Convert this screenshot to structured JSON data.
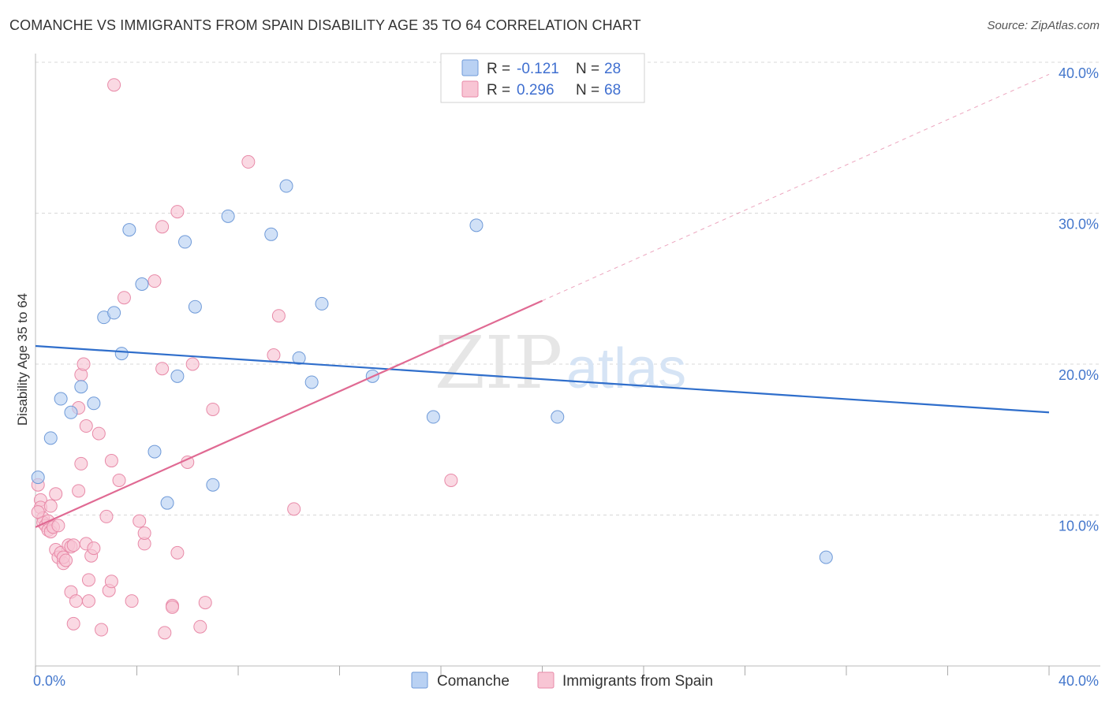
{
  "title": "COMANCHE VS IMMIGRANTS FROM SPAIN DISABILITY AGE 35 TO 64 CORRELATION CHART",
  "source": "Source: ZipAtlas.com",
  "watermark": {
    "zip": "ZIP",
    "atlas": "atlas"
  },
  "colors": {
    "comanche_fill": "#b9d1f3",
    "comanche_stroke": "#6f9ad8",
    "comanche_line": "#2f6ecb",
    "spain_fill": "#f8c5d4",
    "spain_stroke": "#e88aa8",
    "spain_line": "#e06a93",
    "grid": "#d8d8d8",
    "tick_text": "#4477cc"
  },
  "chart_data": {
    "type": "scatter",
    "xlabel": "",
    "ylabel": "Disability Age 35 to 64",
    "xlim": [
      0,
      40
    ],
    "ylim": [
      0,
      40
    ],
    "x_tick_labels": [
      {
        "value": 0,
        "label": "0.0%"
      },
      {
        "value": 40,
        "label": "40.0%"
      }
    ],
    "y_tick_labels": [
      {
        "value": 10,
        "label": "10.0%"
      },
      {
        "value": 20,
        "label": "20.0%"
      },
      {
        "value": 30,
        "label": "30.0%"
      },
      {
        "value": 40,
        "label": "40.0%"
      }
    ],
    "legend": {
      "placement": "top-center",
      "entries": [
        {
          "name": "Comanche",
          "r_label": "R =",
          "r": "-0.121",
          "n_label": "N =",
          "n": "28"
        },
        {
          "name": "Immigrants from Spain",
          "r_label": "R =",
          "r": "0.296",
          "n_label": "N =",
          "n": "68"
        }
      ]
    },
    "series": [
      {
        "name": "Comanche",
        "trend": {
          "x0": 0,
          "y0": 21.2,
          "x1": 40,
          "y1": 16.8
        },
        "points": [
          [
            0.1,
            12.5
          ],
          [
            0.6,
            15.1
          ],
          [
            1.0,
            17.7
          ],
          [
            1.4,
            16.8
          ],
          [
            1.8,
            18.5
          ],
          [
            2.3,
            17.4
          ],
          [
            2.7,
            23.1
          ],
          [
            3.1,
            23.4
          ],
          [
            3.4,
            20.7
          ],
          [
            3.7,
            28.9
          ],
          [
            4.2,
            25.3
          ],
          [
            4.7,
            14.2
          ],
          [
            5.2,
            10.8
          ],
          [
            5.6,
            19.2
          ],
          [
            5.9,
            28.1
          ],
          [
            6.3,
            23.8
          ],
          [
            7.0,
            12.0
          ],
          [
            7.6,
            29.8
          ],
          [
            9.3,
            28.6
          ],
          [
            9.9,
            31.8
          ],
          [
            10.4,
            20.4
          ],
          [
            10.9,
            18.8
          ],
          [
            11.3,
            24.0
          ],
          [
            13.3,
            19.2
          ],
          [
            15.7,
            16.5
          ],
          [
            17.4,
            29.2
          ],
          [
            20.6,
            16.5
          ],
          [
            31.2,
            7.2
          ]
        ]
      },
      {
        "name": "Immigrants from Spain",
        "trend": {
          "x0": 0,
          "y0": 9.2,
          "x1": 20,
          "y1": 24.2,
          "dashed_x1": 40,
          "dashed_y1": 39.2
        },
        "points": [
          [
            0.1,
            12.0
          ],
          [
            0.2,
            11.0
          ],
          [
            0.2,
            10.5
          ],
          [
            0.3,
            9.8
          ],
          [
            0.3,
            9.5
          ],
          [
            0.4,
            9.3
          ],
          [
            0.5,
            9.6
          ],
          [
            0.5,
            9.0
          ],
          [
            0.6,
            10.6
          ],
          [
            0.6,
            8.9
          ],
          [
            0.7,
            9.2
          ],
          [
            0.8,
            11.4
          ],
          [
            0.8,
            7.7
          ],
          [
            0.9,
            7.2
          ],
          [
            0.9,
            9.3
          ],
          [
            1.0,
            7.5
          ],
          [
            1.1,
            6.8
          ],
          [
            1.1,
            7.2
          ],
          [
            1.2,
            7.0
          ],
          [
            1.3,
            8.0
          ],
          [
            1.4,
            7.9
          ],
          [
            1.4,
            4.9
          ],
          [
            1.5,
            2.8
          ],
          [
            1.5,
            8.0
          ],
          [
            1.6,
            4.3
          ],
          [
            1.7,
            11.6
          ],
          [
            1.7,
            17.1
          ],
          [
            1.8,
            19.3
          ],
          [
            1.8,
            13.4
          ],
          [
            1.9,
            20.0
          ],
          [
            2.0,
            15.9
          ],
          [
            2.0,
            8.1
          ],
          [
            2.1,
            5.7
          ],
          [
            2.1,
            4.3
          ],
          [
            2.2,
            7.3
          ],
          [
            2.3,
            7.8
          ],
          [
            2.5,
            15.4
          ],
          [
            2.6,
            2.4
          ],
          [
            2.8,
            9.9
          ],
          [
            2.9,
            5.0
          ],
          [
            3.0,
            5.6
          ],
          [
            3.0,
            13.6
          ],
          [
            3.1,
            38.5
          ],
          [
            3.3,
            12.3
          ],
          [
            3.5,
            24.4
          ],
          [
            3.8,
            4.3
          ],
          [
            4.1,
            9.6
          ],
          [
            4.3,
            8.1
          ],
          [
            4.3,
            8.8
          ],
          [
            4.7,
            25.5
          ],
          [
            5.0,
            19.7
          ],
          [
            5.0,
            29.1
          ],
          [
            5.1,
            2.2
          ],
          [
            5.4,
            4.0
          ],
          [
            5.4,
            3.9
          ],
          [
            5.6,
            7.5
          ],
          [
            5.6,
            30.1
          ],
          [
            6.0,
            13.5
          ],
          [
            6.2,
            20.0
          ],
          [
            6.5,
            2.6
          ],
          [
            6.7,
            4.2
          ],
          [
            7.0,
            17.0
          ],
          [
            8.4,
            33.4
          ],
          [
            9.4,
            20.6
          ],
          [
            9.6,
            23.2
          ],
          [
            10.2,
            10.4
          ],
          [
            16.4,
            12.3
          ],
          [
            0.1,
            10.2
          ]
        ]
      }
    ]
  }
}
